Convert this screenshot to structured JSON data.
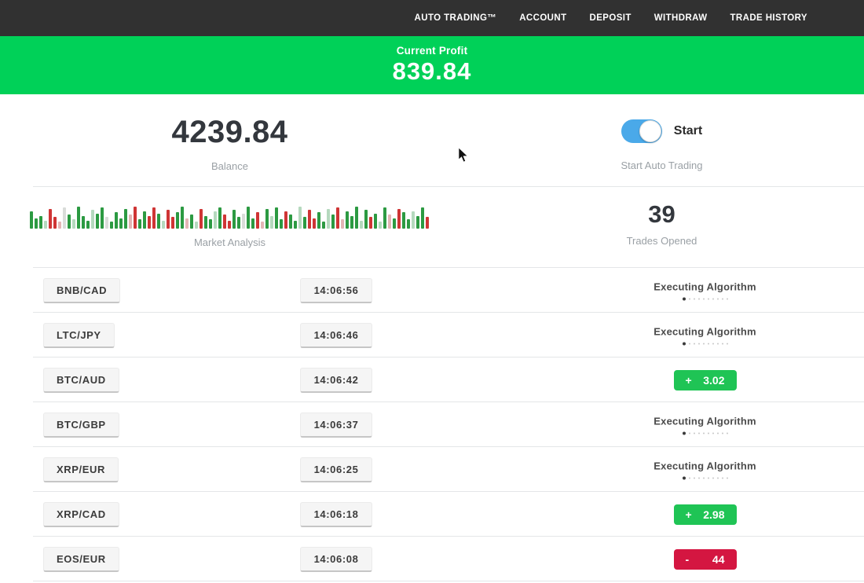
{
  "colors": {
    "nav_bg": "#313131",
    "banner_green": "#00d158",
    "badge_green": "#1fc455",
    "badge_red": "#d41641",
    "toggle_blue": "#4aa9e9",
    "divider": "#e4e6e8"
  },
  "nav": {
    "items": [
      "AUTO TRADING™",
      "ACCOUNT",
      "DEPOSIT",
      "WITHDRAW",
      "TRADE HISTORY"
    ]
  },
  "banner": {
    "label": "Current Profit",
    "value": "839.84"
  },
  "stats": {
    "balance_value": "4239.84",
    "balance_label": "Balance",
    "toggle_label": "Start",
    "toggle_sub": "Start Auto Trading",
    "toggle_on": true,
    "market_label": "Market Analysis",
    "trades_value": "39",
    "trades_label": "Trades Opened"
  },
  "chart_data": {
    "type": "bar",
    "title": "Market Analysis",
    "palette": {
      "g": "#2c9a42",
      "r": "#cf3535",
      "lg": "#b5d9be",
      "lr": "#e3b5b5",
      "x": "#d9dcd9"
    },
    "bars": [
      [
        0.75,
        "g"
      ],
      [
        0.45,
        "g"
      ],
      [
        0.55,
        "g"
      ],
      [
        0.35,
        "lg"
      ],
      [
        0.85,
        "r"
      ],
      [
        0.5,
        "r"
      ],
      [
        0.3,
        "lr"
      ],
      [
        0.9,
        "x"
      ],
      [
        0.6,
        "g"
      ],
      [
        0.4,
        "lg"
      ],
      [
        0.95,
        "g"
      ],
      [
        0.55,
        "g"
      ],
      [
        0.35,
        "g"
      ],
      [
        0.8,
        "lg"
      ],
      [
        0.65,
        "g"
      ],
      [
        0.9,
        "g"
      ],
      [
        0.5,
        "x"
      ],
      [
        0.3,
        "g"
      ],
      [
        0.7,
        "g"
      ],
      [
        0.45,
        "g"
      ],
      [
        0.85,
        "g"
      ],
      [
        0.6,
        "lr"
      ],
      [
        0.95,
        "r"
      ],
      [
        0.4,
        "g"
      ],
      [
        0.75,
        "g"
      ],
      [
        0.55,
        "r"
      ],
      [
        0.9,
        "r"
      ],
      [
        0.65,
        "g"
      ],
      [
        0.35,
        "lg"
      ],
      [
        0.8,
        "r"
      ],
      [
        0.5,
        "r"
      ],
      [
        0.7,
        "g"
      ],
      [
        0.95,
        "g"
      ],
      [
        0.45,
        "lr"
      ],
      [
        0.6,
        "g"
      ],
      [
        0.3,
        "lg"
      ],
      [
        0.85,
        "r"
      ],
      [
        0.55,
        "g"
      ],
      [
        0.4,
        "g"
      ],
      [
        0.75,
        "lg"
      ],
      [
        0.9,
        "g"
      ],
      [
        0.6,
        "r"
      ],
      [
        0.35,
        "r"
      ],
      [
        0.8,
        "g"
      ],
      [
        0.5,
        "g"
      ],
      [
        0.65,
        "x"
      ],
      [
        0.95,
        "g"
      ],
      [
        0.45,
        "g"
      ],
      [
        0.7,
        "r"
      ],
      [
        0.3,
        "lr"
      ],
      [
        0.85,
        "g"
      ],
      [
        0.55,
        "lg"
      ],
      [
        0.9,
        "g"
      ],
      [
        0.4,
        "g"
      ],
      [
        0.75,
        "r"
      ],
      [
        0.6,
        "g"
      ],
      [
        0.35,
        "g"
      ],
      [
        0.95,
        "lg"
      ],
      [
        0.5,
        "g"
      ],
      [
        0.8,
        "r"
      ],
      [
        0.45,
        "r"
      ],
      [
        0.7,
        "g"
      ],
      [
        0.3,
        "g"
      ],
      [
        0.85,
        "lg"
      ],
      [
        0.6,
        "g"
      ],
      [
        0.9,
        "r"
      ],
      [
        0.4,
        "lr"
      ],
      [
        0.75,
        "g"
      ],
      [
        0.55,
        "g"
      ],
      [
        0.95,
        "g"
      ],
      [
        0.35,
        "lg"
      ],
      [
        0.8,
        "g"
      ],
      [
        0.5,
        "r"
      ],
      [
        0.65,
        "g"
      ],
      [
        0.3,
        "lg"
      ],
      [
        0.9,
        "g"
      ],
      [
        0.6,
        "lr"
      ],
      [
        0.45,
        "g"
      ],
      [
        0.85,
        "r"
      ],
      [
        0.7,
        "g"
      ],
      [
        0.4,
        "g"
      ],
      [
        0.75,
        "lg"
      ],
      [
        0.55,
        "g"
      ],
      [
        0.9,
        "g"
      ],
      [
        0.5,
        "r"
      ]
    ]
  },
  "trades": {
    "executing_dots": 10,
    "rows": [
      {
        "pair": "BNB/CAD",
        "time": "14:06:56",
        "status": {
          "type": "executing",
          "label": "Executing Algorithm"
        }
      },
      {
        "pair": "LTC/JPY",
        "time": "14:06:46",
        "status": {
          "type": "executing",
          "label": "Executing Algorithm"
        }
      },
      {
        "pair": "BTC/AUD",
        "time": "14:06:42",
        "status": {
          "type": "profit",
          "sign": "+",
          "value": "3.02"
        }
      },
      {
        "pair": "BTC/GBP",
        "time": "14:06:37",
        "status": {
          "type": "executing",
          "label": "Executing Algorithm"
        }
      },
      {
        "pair": "XRP/EUR",
        "time": "14:06:25",
        "status": {
          "type": "executing",
          "label": "Executing Algorithm"
        }
      },
      {
        "pair": "XRP/CAD",
        "time": "14:06:18",
        "status": {
          "type": "profit",
          "sign": "+",
          "value": "2.98"
        }
      },
      {
        "pair": "EOS/EUR",
        "time": "14:06:08",
        "status": {
          "type": "loss",
          "sign": "-",
          "value": "44"
        }
      }
    ]
  }
}
